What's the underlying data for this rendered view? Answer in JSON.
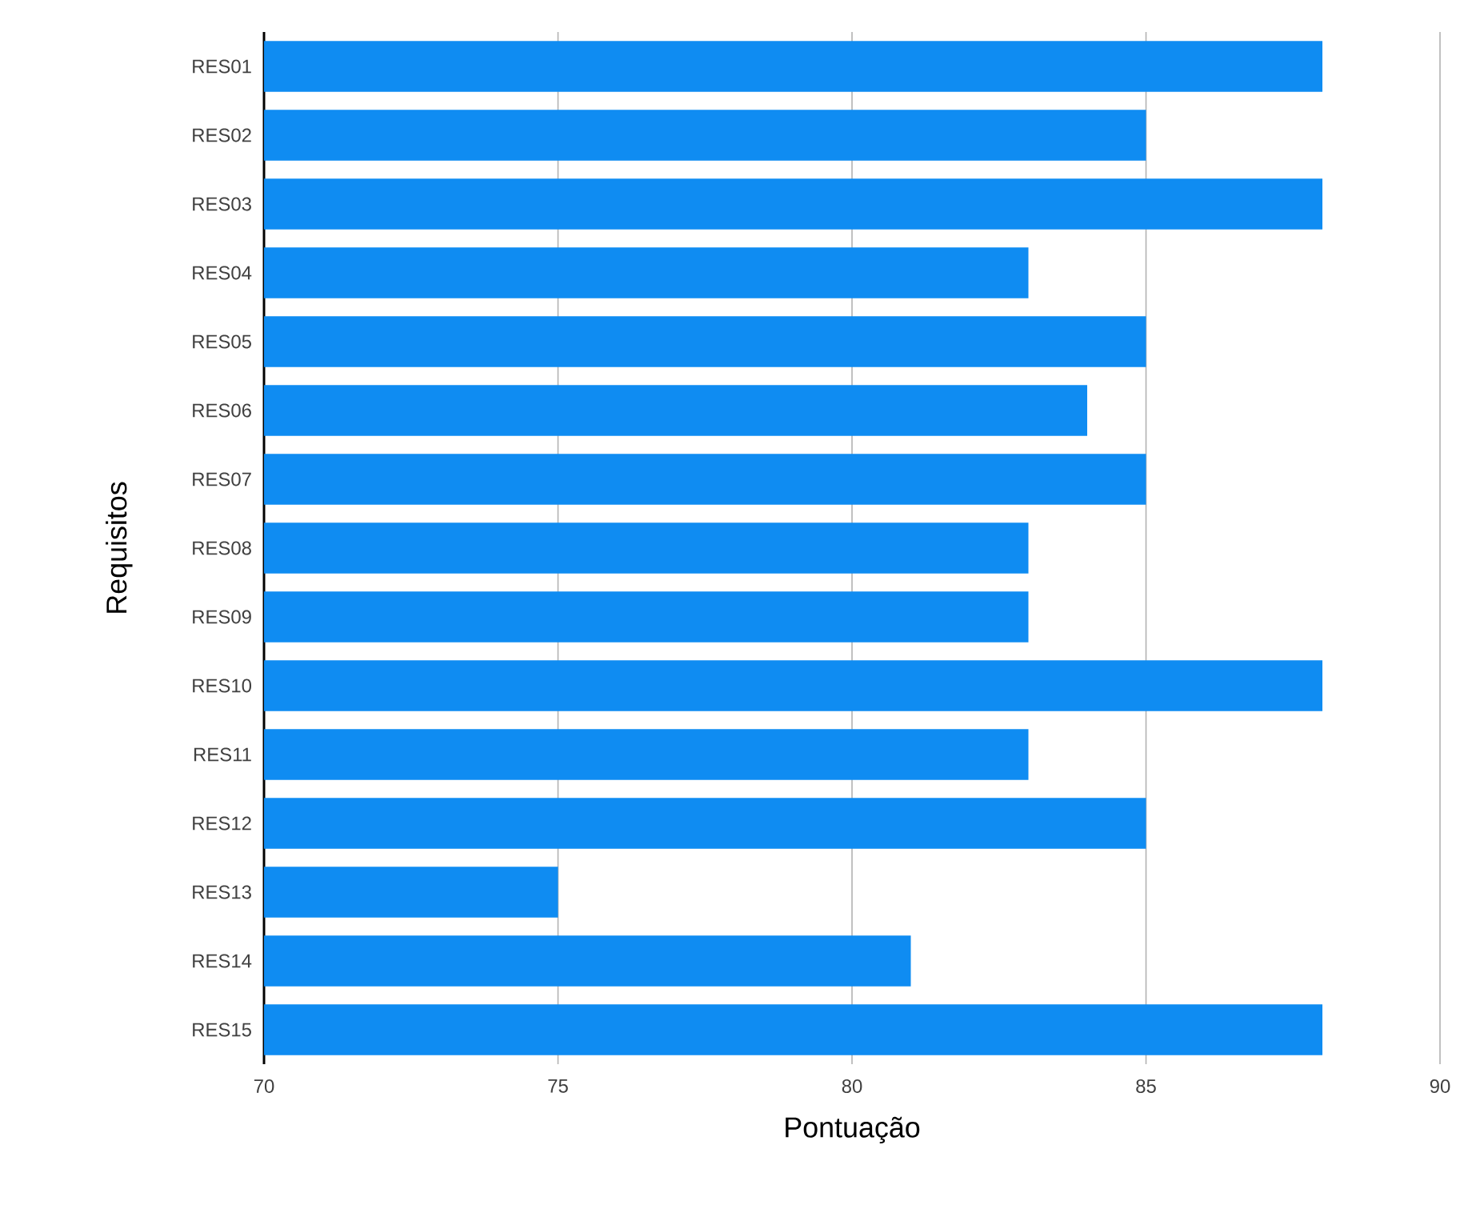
{
  "chart_data": {
    "type": "bar",
    "orientation": "horizontal",
    "xlabel": "Pontuação",
    "ylabel": "Requisitos",
    "categories": [
      "RES01",
      "RES02",
      "RES03",
      "RES04",
      "RES05",
      "RES06",
      "RES07",
      "RES08",
      "RES09",
      "RES10",
      "RES11",
      "RES12",
      "RES13",
      "RES14",
      "RES15"
    ],
    "values": [
      88,
      85,
      88,
      83,
      85,
      84,
      85,
      83,
      83,
      88,
      83,
      85,
      75,
      81,
      88
    ],
    "color": "#0f8cf2",
    "xlim": [
      70,
      90
    ],
    "xticks": [
      70,
      75,
      80,
      85,
      90
    ],
    "grid": "x"
  }
}
